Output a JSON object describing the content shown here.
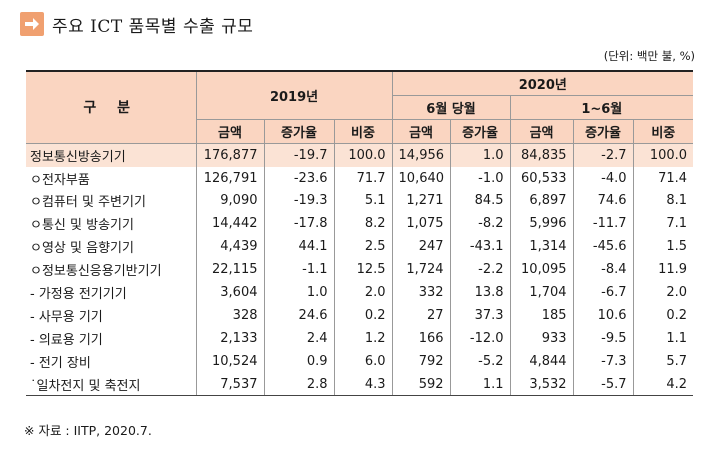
{
  "title": "주요 ICT 품목별 수출 규모",
  "unit": "(단위: 백만 불, %)",
  "header": {
    "gubun": "구 분",
    "y2019": "2019년",
    "y2020": "2020년",
    "june": "6월 당월",
    "h1": "1~6월",
    "amount": "금액",
    "growth": "증가율",
    "share": "비중"
  },
  "rows": [
    {
      "name": "정보통신방송기기",
      "c": [
        "176,877",
        "-19.7",
        "100.0",
        "14,956",
        "1.0",
        "84,835",
        "-2.7",
        "100.0"
      ]
    },
    {
      "name": "ㅇ전자부품",
      "c": [
        "126,791",
        "-23.6",
        "71.7",
        "10,640",
        "-1.0",
        "60,533",
        "-4.0",
        "71.4"
      ]
    },
    {
      "name": "ㅇ컴퓨터 및 주변기기",
      "c": [
        "9,090",
        "-19.3",
        "5.1",
        "1,271",
        "84.5",
        "6,897",
        "74.6",
        "8.1"
      ]
    },
    {
      "name": "ㅇ통신 및 방송기기",
      "c": [
        "14,442",
        "-17.8",
        "8.2",
        "1,075",
        "-8.2",
        "5,996",
        "-11.7",
        "7.1"
      ]
    },
    {
      "name": "ㅇ영상 및 음향기기",
      "c": [
        "4,439",
        "44.1",
        "2.5",
        "247",
        "-43.1",
        "1,314",
        "-45.6",
        "1.5"
      ]
    },
    {
      "name": "ㅇ정보통신응용기반기기",
      "c": [
        "22,115",
        "-1.1",
        "12.5",
        "1,724",
        "-2.2",
        "10,095",
        "-8.4",
        "11.9"
      ]
    },
    {
      "name": " - 가정용 전기기기",
      "c": [
        "3,604",
        "1.0",
        "2.0",
        "332",
        "13.8",
        "1,704",
        "-6.7",
        "2.0"
      ]
    },
    {
      "name": " - 사무용 기기",
      "c": [
        "328",
        "24.6",
        "0.2",
        "27",
        "37.3",
        "185",
        "10.6",
        "0.2"
      ]
    },
    {
      "name": " - 의료용 기기",
      "c": [
        "2,133",
        "2.4",
        "1.2",
        "166",
        "-12.0",
        "933",
        "-9.5",
        "1.1"
      ]
    },
    {
      "name": " - 전기 장비",
      "c": [
        "10,524",
        "0.9",
        "6.0",
        "792",
        "-5.2",
        "4,844",
        "-7.3",
        "5.7"
      ]
    },
    {
      "name": " ˙일차전지 및 축전지",
      "c": [
        "7,537",
        "2.8",
        "4.3",
        "592",
        "1.1",
        "3,532",
        "-5.7",
        "4.2"
      ]
    }
  ],
  "note": "※ 자료 : IITP, 2020.7.",
  "accent_color": "#fad5c1"
}
